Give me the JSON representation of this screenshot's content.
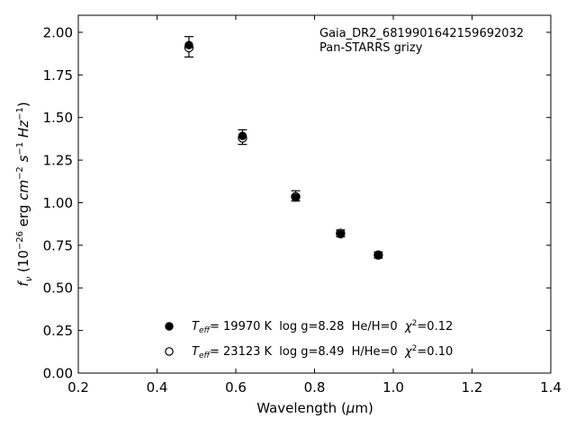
{
  "chart_data": {
    "type": "scatter",
    "annotation": {
      "line1": "Gaia_DR2_6819901642159692032",
      "line2": "Pan-STARRS grizy"
    },
    "xlabel": "Wavelength (μm)",
    "ylabel": "fν (10⁻²⁶ erg cm⁻² s⁻¹ Hz⁻¹)",
    "xlim": [
      0.2,
      1.4
    ],
    "ylim": [
      0.0,
      2.1
    ],
    "xticks": [
      0.2,
      0.4,
      0.6,
      0.8,
      1.0,
      1.2,
      1.4
    ],
    "xtick_labels": [
      "0.2",
      "0.4",
      "0.6",
      "0.8",
      "1.0",
      "1.2",
      "1.4"
    ],
    "yticks": [
      0.0,
      0.25,
      0.5,
      0.75,
      1.0,
      1.25,
      1.5,
      1.75,
      2.0
    ],
    "ytick_labels": [
      "0.00",
      "0.25",
      "0.50",
      "0.75",
      "1.00",
      "1.25",
      "1.50",
      "1.75",
      "2.00"
    ],
    "grid": false,
    "legend_placement": "lower-center",
    "observed": {
      "x": [
        0.481,
        0.617,
        0.752,
        0.866,
        0.962
      ],
      "y": [
        1.915,
        1.385,
        1.04,
        0.82,
        0.693
      ],
      "yerr": [
        0.06,
        0.043,
        0.03,
        0.02,
        0.018
      ]
    },
    "series": [
      {
        "marker": "filled",
        "label": "Teff= 19970 K  log g=8.28  He/H=0  χ²=0.12",
        "x": [
          0.481,
          0.617,
          0.752,
          0.866,
          0.962
        ],
        "y": [
          1.925,
          1.392,
          1.03,
          0.815,
          0.693
        ]
      },
      {
        "marker": "open",
        "label": "Teff= 23123 K  log g=8.49  H/He=0  χ²=0.10",
        "x": [
          0.481,
          0.617,
          0.752,
          0.866,
          0.962
        ],
        "y": [
          1.91,
          1.38,
          1.035,
          0.82,
          0.693
        ]
      }
    ],
    "legend": [
      {
        "marker": "filled",
        "teff_sym": "T",
        "teff_sub": "eff",
        "teff_val": "= 19970 K  log g=8.28  He/H=0  ",
        "chi_sym": "χ",
        "chi_sup": "2",
        "chi_val": "=0.12"
      },
      {
        "marker": "open",
        "teff_sym": "T",
        "teff_sub": "eff",
        "teff_val": "= 23123 K  log g=8.49  H/He=0  ",
        "chi_sym": "χ",
        "chi_sup": "2",
        "chi_val": "=0.10"
      }
    ],
    "colors": {
      "marker": "#000000",
      "open_fill": "#ffffff",
      "axes": "#000000",
      "background": "#ffffff"
    }
  }
}
